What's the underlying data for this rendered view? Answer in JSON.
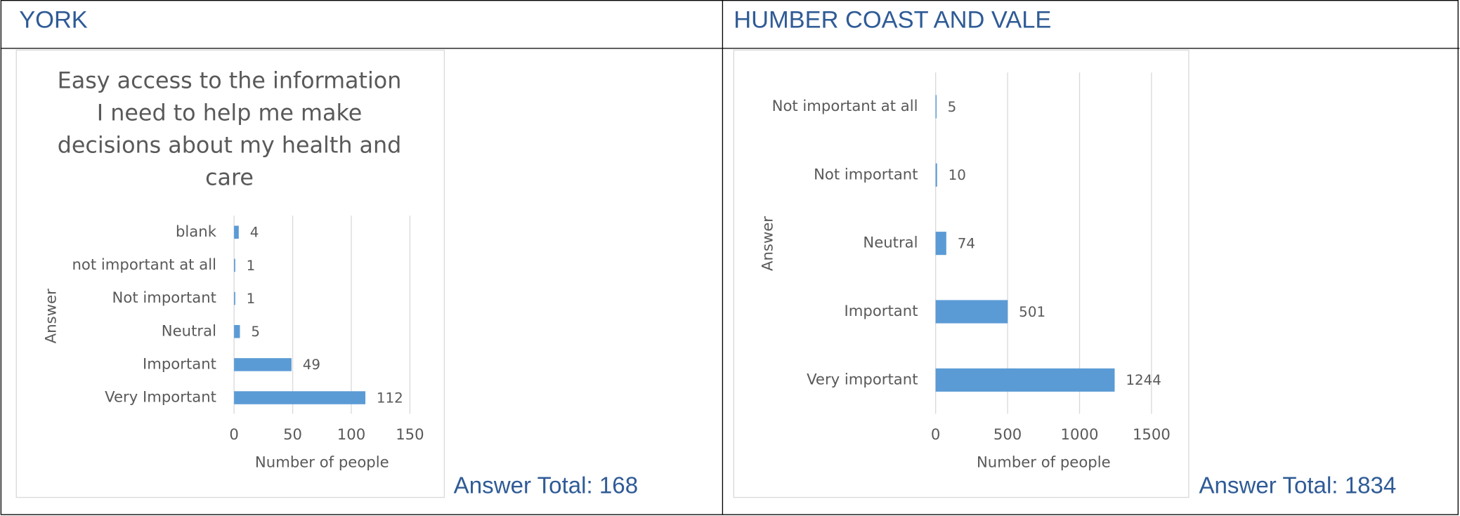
{
  "headings": [
    "YORK",
    "HUMBER COAST AND VALE"
  ],
  "totals": [
    "Answer Total: 168",
    "Answer Total: 1834"
  ],
  "chart_data": [
    {
      "type": "bar",
      "orientation": "horizontal",
      "title": [
        "Easy access to the information",
        "I need to help me make",
        "decisions about my health and",
        "care"
      ],
      "categories": [
        "blank",
        "not important at all",
        "Not important",
        "Neutral",
        "Important",
        "Very Important"
      ],
      "values": [
        4,
        1,
        1,
        5,
        49,
        112
      ],
      "color": "#5b9bd5",
      "xlim": [
        0,
        150
      ],
      "xticks": [
        0,
        50,
        100,
        150
      ],
      "grid": true,
      "xlabel": "Number of people",
      "ylabel": "Answer"
    },
    {
      "type": "bar",
      "orientation": "horizontal",
      "categories": [
        "Not important at all",
        "Not important",
        "Neutral",
        "Important",
        "Very important"
      ],
      "values": [
        5,
        10,
        74,
        501,
        1244
      ],
      "color": "#5b9bd5",
      "xlim": [
        0,
        1500
      ],
      "xticks": [
        0,
        500,
        1000,
        1500
      ],
      "grid": true,
      "xlabel": "Number of people",
      "ylabel": "Answer"
    }
  ]
}
